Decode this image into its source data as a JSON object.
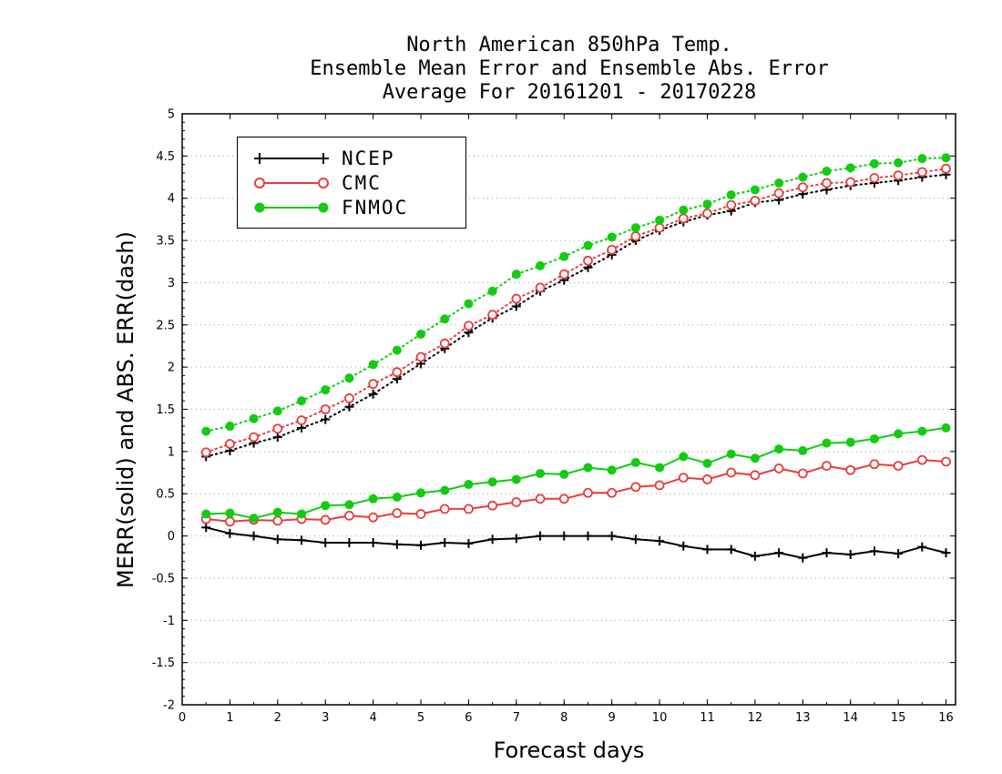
{
  "chart_data": {
    "type": "line",
    "title": [
      "North American 850hPa Temp.",
      "Ensemble Mean Error and Ensemble Abs. Error",
      "Average For 20161201 - 20170228"
    ],
    "xlabel": "Forecast days",
    "ylabel": "MERR(solid) and ABS. ERR(dash)",
    "xlim": [
      0,
      16.2
    ],
    "ylim": [
      -2,
      5
    ],
    "x_ticks": [
      "0",
      "1",
      "2",
      "3",
      "4",
      "5",
      "6",
      "7",
      "8",
      "9",
      "10",
      "11",
      "12",
      "13",
      "14",
      "15",
      "16"
    ],
    "y_ticks": [
      "-2",
      "-1.5",
      "-1",
      "-0.5",
      "0",
      "0.5",
      "1",
      "1.5",
      "2",
      "2.5",
      "3",
      "3.5",
      "4",
      "4.5",
      "5"
    ],
    "grid": "horizontal dotted",
    "legend_position": "top-left",
    "x": [
      0.5,
      1,
      1.5,
      2,
      2.5,
      3,
      3.5,
      4,
      4.5,
      5,
      5.5,
      6,
      6.5,
      7,
      7.5,
      8,
      8.5,
      9,
      9.5,
      10,
      10.5,
      11,
      11.5,
      12,
      12.5,
      13,
      13.5,
      14,
      14.5,
      15,
      15.5,
      16
    ],
    "series": [
      {
        "name": "NCEP",
        "color": "#000000",
        "marker": "plus",
        "style": "solid",
        "kind": "MERR",
        "values": [
          0.1,
          0.03,
          0,
          -0.04,
          -0.05,
          -0.08,
          -0.08,
          -0.08,
          -0.1,
          -0.11,
          -0.08,
          -0.09,
          -0.04,
          -0.03,
          0,
          0,
          0,
          0,
          -0.04,
          -0.06,
          -0.12,
          -0.16,
          -0.16,
          -0.24,
          -0.2,
          -0.26,
          -0.2,
          -0.22,
          -0.18,
          -0.21,
          -0.13,
          -0.2
        ]
      },
      {
        "name": "CMC",
        "color": "#e83c3c",
        "marker": "circle-open",
        "style": "solid",
        "kind": "MERR",
        "values": [
          0.2,
          0.17,
          0.19,
          0.18,
          0.2,
          0.19,
          0.24,
          0.22,
          0.27,
          0.26,
          0.32,
          0.32,
          0.36,
          0.4,
          0.44,
          0.44,
          0.51,
          0.51,
          0.58,
          0.6,
          0.69,
          0.67,
          0.75,
          0.72,
          0.8,
          0.74,
          0.83,
          0.78,
          0.85,
          0.83,
          0.9,
          0.88
        ]
      },
      {
        "name": "FNMOC",
        "color": "#11cc11",
        "marker": "circle-filled",
        "style": "solid",
        "kind": "MERR",
        "values": [
          0.26,
          0.27,
          0.21,
          0.28,
          0.26,
          0.36,
          0.37,
          0.44,
          0.46,
          0.51,
          0.54,
          0.61,
          0.64,
          0.67,
          0.74,
          0.73,
          0.81,
          0.78,
          0.87,
          0.81,
          0.94,
          0.86,
          0.97,
          0.92,
          1.03,
          1.01,
          1.1,
          1.11,
          1.15,
          1.21,
          1.24,
          1.28
        ]
      },
      {
        "name": "NCEP",
        "color": "#000000",
        "marker": "plus",
        "style": "dotted",
        "kind": "ABS. ERR",
        "values": [
          0.94,
          1.01,
          1.1,
          1.17,
          1.28,
          1.38,
          1.53,
          1.68,
          1.86,
          2.04,
          2.22,
          2.41,
          2.58,
          2.72,
          2.9,
          3.03,
          3.18,
          3.33,
          3.5,
          3.62,
          3.72,
          3.8,
          3.85,
          3.95,
          3.98,
          4.05,
          4.1,
          4.15,
          4.18,
          4.21,
          4.25,
          4.28
        ]
      },
      {
        "name": "CMC",
        "color": "#e83c3c",
        "marker": "circle-open",
        "style": "dotted",
        "kind": "ABS. ERR",
        "values": [
          0.99,
          1.09,
          1.17,
          1.27,
          1.37,
          1.5,
          1.63,
          1.8,
          1.94,
          2.12,
          2.28,
          2.49,
          2.62,
          2.81,
          2.94,
          3.1,
          3.26,
          3.39,
          3.55,
          3.65,
          3.76,
          3.82,
          3.92,
          3.97,
          4.06,
          4.13,
          4.18,
          4.19,
          4.24,
          4.27,
          4.31,
          4.35
        ]
      },
      {
        "name": "FNMOC",
        "color": "#11cc11",
        "marker": "circle-filled",
        "style": "dotted",
        "kind": "ABS. ERR",
        "values": [
          1.24,
          1.3,
          1.39,
          1.48,
          1.6,
          1.73,
          1.87,
          2.03,
          2.2,
          2.39,
          2.57,
          2.75,
          2.9,
          3.1,
          3.2,
          3.31,
          3.44,
          3.54,
          3.65,
          3.74,
          3.86,
          3.93,
          4.04,
          4.1,
          4.18,
          4.25,
          4.32,
          4.36,
          4.41,
          4.42,
          4.47,
          4.48
        ]
      }
    ]
  },
  "legend": {
    "items": [
      {
        "label": "NCEP",
        "color": "#000000",
        "marker": "plus"
      },
      {
        "label": "CMC",
        "color": "#e83c3c",
        "marker": "circle-open"
      },
      {
        "label": "FNMOC",
        "color": "#11cc11",
        "marker": "circle-filled"
      }
    ]
  }
}
